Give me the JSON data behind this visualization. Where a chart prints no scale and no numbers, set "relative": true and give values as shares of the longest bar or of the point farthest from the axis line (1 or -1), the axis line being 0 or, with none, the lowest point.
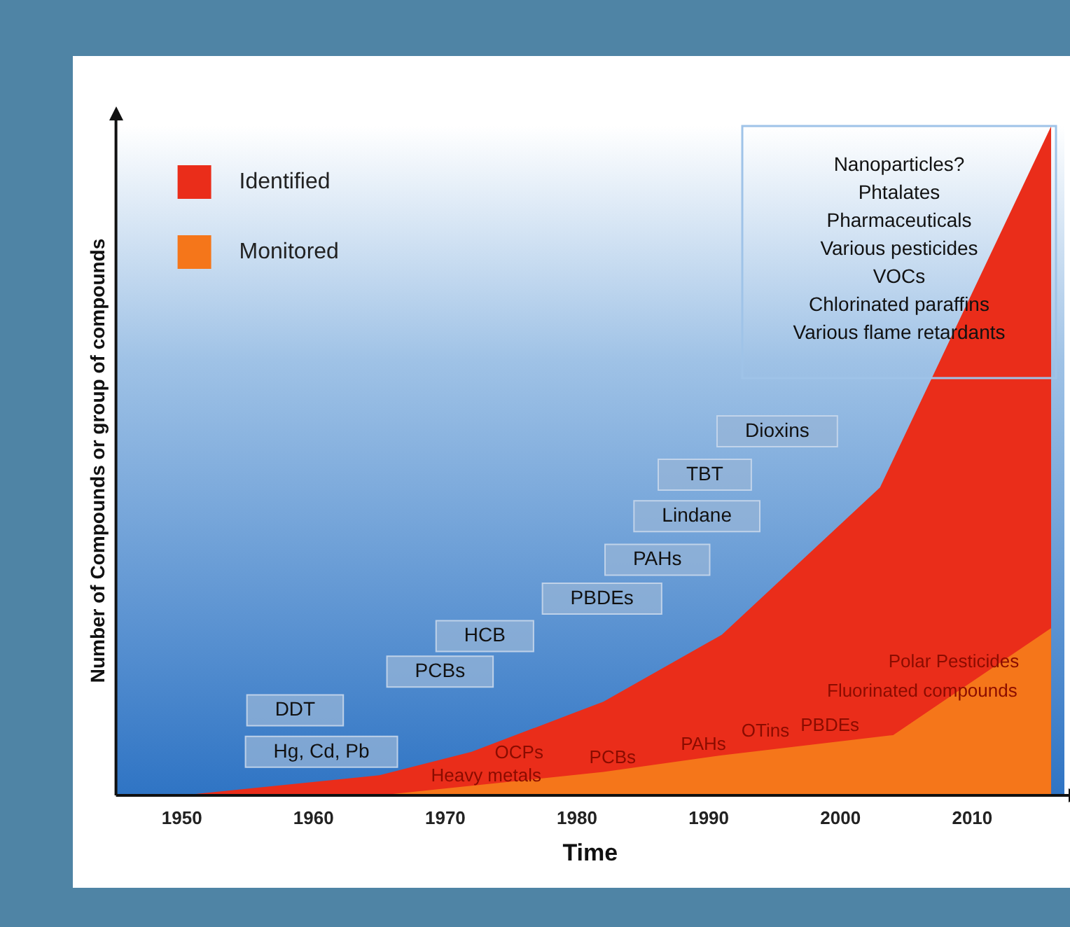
{
  "chart_data": {
    "type": "area",
    "relative": true,
    "xlabel": "Time",
    "ylabel": "Number of Compounds or group of compounds",
    "xlim": [
      1945,
      2017
    ],
    "xticks": [
      1950,
      1960,
      1970,
      1980,
      1990,
      2000,
      2010
    ],
    "grid": false,
    "legend": "top left",
    "series": [
      {
        "name": "Identified",
        "color": "#ea2d1a",
        "x": [
          1950,
          1965,
          1972,
          1982,
          1991,
          2003,
          2016
        ],
        "values": [
          0,
          0.03,
          0.065,
          0.14,
          0.24,
          0.46,
          1
        ]
      },
      {
        "name": "Monitored",
        "color": "#f5761a",
        "x": [
          1965,
          1982,
          1991,
          2004,
          2016
        ],
        "values": [
          0,
          0.035,
          0.06,
          0.09,
          0.25
        ]
      }
    ],
    "annotations": [
      "Hg, Cd, Pb",
      "DDT",
      "PCBs",
      "HCB",
      "PBDEs",
      "PAHs",
      "Lindane",
      "TBT",
      "Dioxins",
      "Nanoparticles?",
      "Phtalates",
      "Pharmaceuticals",
      "Various pesticides",
      "VOCs",
      "Chlorinated paraffins",
      "Various flame retardants",
      "Heavy metals",
      "OCPs",
      "PCBs",
      "PAHs",
      "OTins",
      "PBDEs",
      "Fluorinated compounds",
      "Polar Pesticides"
    ]
  }
}
